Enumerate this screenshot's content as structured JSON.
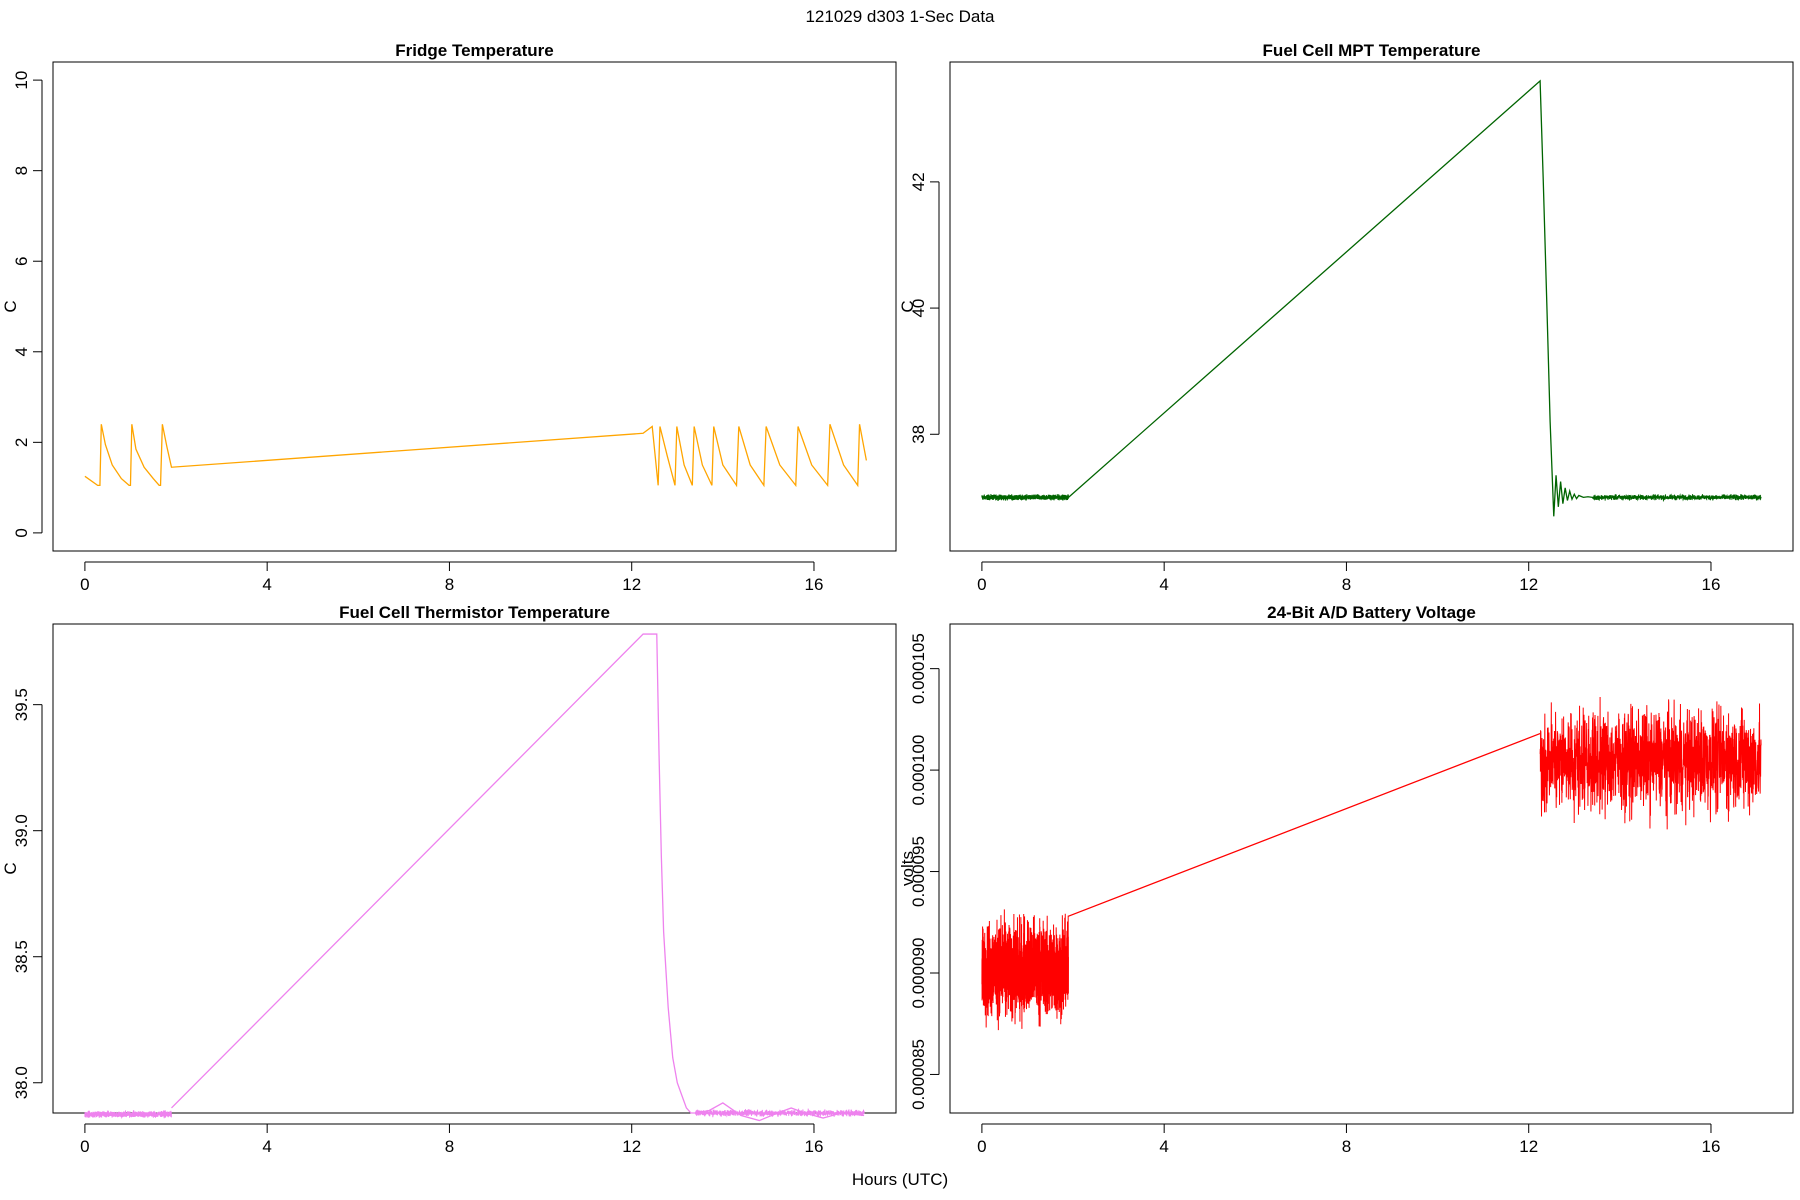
{
  "figure": {
    "suptitle": "121029   d303   1-Sec Data",
    "xlabel": "Hours (UTC)"
  },
  "chart_data": [
    {
      "type": "line",
      "title": "Fridge Temperature",
      "ylabel": "C",
      "color": "#FFA500",
      "xlim": [
        -0.7,
        17.8
      ],
      "ylim": [
        -0.4,
        10.4
      ],
      "x_ticks": [
        0,
        4,
        8,
        12,
        16
      ],
      "x_tick_labels": [
        "0",
        "4",
        "8",
        "12",
        "16"
      ],
      "y_ticks": [
        0,
        2,
        4,
        6,
        8,
        10
      ],
      "y_tick_labels": [
        "0",
        "2",
        "4",
        "6",
        "8",
        "10"
      ],
      "series": [
        {
          "name": "fridge",
          "x": [
            0.0,
            0.28,
            0.33,
            0.36,
            0.45,
            0.6,
            0.8,
            0.97,
            1.0,
            1.03,
            1.12,
            1.3,
            1.5,
            1.63,
            1.66,
            1.7,
            1.8,
            1.9,
            12.25,
            12.45,
            12.58,
            12.62,
            12.78,
            12.95,
            12.99,
            13.15,
            13.33,
            13.37,
            13.55,
            13.76,
            13.8,
            14.0,
            14.3,
            14.35,
            14.6,
            14.9,
            14.95,
            15.25,
            15.6,
            15.65,
            15.95,
            16.3,
            16.35,
            16.65,
            16.96,
            17.0,
            17.15
          ],
          "y": [
            1.25,
            1.05,
            1.05,
            2.4,
            1.95,
            1.5,
            1.2,
            1.05,
            1.05,
            2.4,
            1.85,
            1.45,
            1.2,
            1.05,
            1.05,
            2.4,
            1.9,
            1.45,
            2.2,
            2.35,
            1.05,
            2.35,
            1.7,
            1.05,
            2.35,
            1.5,
            1.05,
            2.35,
            1.5,
            1.05,
            2.35,
            1.5,
            1.05,
            2.35,
            1.5,
            1.05,
            2.35,
            1.5,
            1.05,
            2.35,
            1.5,
            1.05,
            2.4,
            1.5,
            1.05,
            2.4,
            1.6
          ]
        }
      ]
    },
    {
      "type": "line",
      "title": "Fuel Cell MPT Temperature",
      "ylabel": "C",
      "color": "#006400",
      "xlim": [
        -0.7,
        17.8
      ],
      "ylim": [
        36.15,
        43.9
      ],
      "x_ticks": [
        0,
        4,
        8,
        12,
        16
      ],
      "x_tick_labels": [
        "0",
        "4",
        "8",
        "12",
        "16"
      ],
      "y_ticks": [
        38,
        40,
        42
      ],
      "y_tick_labels": [
        "38",
        "40",
        "42"
      ],
      "noise_segments": [
        {
          "x_start": 0.0,
          "x_end": 1.9,
          "center": 37.0,
          "amplitude": 0.06
        },
        {
          "x_start": 13.4,
          "x_end": 17.1,
          "center": 37.0,
          "amplitude": 0.06
        }
      ],
      "series": [
        {
          "name": "mpt",
          "x": [
            1.9,
            12.25,
            12.32,
            12.4,
            12.47,
            12.55,
            12.6,
            12.65,
            12.7,
            12.75,
            12.8,
            12.85,
            12.9,
            12.95,
            13.0,
            13.05,
            13.1,
            13.2,
            13.3,
            13.4
          ],
          "y": [
            37.0,
            43.6,
            42.0,
            40.0,
            38.2,
            36.7,
            37.35,
            36.85,
            37.25,
            36.9,
            37.15,
            36.95,
            37.1,
            36.97,
            37.05,
            36.98,
            37.03,
            37.0,
            37.01,
            37.0
          ]
        }
      ]
    },
    {
      "type": "line",
      "title": "Fuel Cell Thermistor Temperature",
      "ylabel": "C",
      "color": "#EE82EE",
      "xlim": [
        -0.7,
        17.8
      ],
      "ylim": [
        37.88,
        39.82
      ],
      "x_ticks": [
        0,
        4,
        8,
        12,
        16
      ],
      "x_tick_labels": [
        "0",
        "4",
        "8",
        "12",
        "16"
      ],
      "y_ticks": [
        38.0,
        38.5,
        39.0,
        39.5
      ],
      "y_tick_labels": [
        "38.0",
        "38.5",
        "39.0",
        "39.5"
      ],
      "noise_segments": [
        {
          "x_start": 0.0,
          "x_end": 1.9,
          "center": 37.875,
          "amplitude": 0.018
        },
        {
          "x_start": 13.4,
          "x_end": 17.1,
          "center": 37.88,
          "amplitude": 0.018
        }
      ],
      "series": [
        {
          "name": "thermistor",
          "x": [
            1.9,
            12.25,
            12.55,
            12.6,
            12.65,
            12.7,
            12.75,
            12.8,
            12.85,
            12.9,
            13.0,
            13.1,
            13.2,
            13.3,
            13.4,
            13.7,
            14.0,
            14.4,
            14.8,
            15.2,
            15.5,
            15.8,
            16.2,
            16.6,
            17.1
          ],
          "y": [
            37.9,
            39.78,
            39.78,
            39.3,
            38.9,
            38.6,
            38.45,
            38.3,
            38.2,
            38.1,
            38.0,
            37.95,
            37.9,
            37.88,
            37.88,
            37.89,
            37.92,
            37.87,
            37.85,
            37.88,
            37.9,
            37.88,
            37.86,
            37.88,
            37.87
          ]
        }
      ]
    },
    {
      "type": "line",
      "title": "24-Bit A/D Battery Voltage",
      "ylabel": "volts",
      "color": "#FF0000",
      "xlim": [
        -0.7,
        17.8
      ],
      "ylim": [
        8.31e-05,
        0.0001072
      ],
      "x_ticks": [
        0,
        4,
        8,
        12,
        16
      ],
      "x_tick_labels": [
        "0",
        "4",
        "8",
        "12",
        "16"
      ],
      "y_ticks": [
        8.5e-05,
        9e-05,
        9.5e-05,
        0.0001,
        0.000105
      ],
      "y_tick_labels": [
        "0.000085",
        "0.000090",
        "0.000095",
        "0.000100",
        "0.000105"
      ],
      "noise_segments": [
        {
          "x_start": 0.0,
          "x_end": 1.9,
          "center": 9.02e-05,
          "amplitude": 3.3e-06
        },
        {
          "x_start": 12.25,
          "x_end": 17.1,
          "center": 0.0001005,
          "amplitude": 3.6e-06
        }
      ],
      "series": [
        {
          "name": "battery",
          "x": [
            1.9,
            12.25
          ],
          "y": [
            9.28e-05,
            0.0001018
          ]
        }
      ]
    }
  ]
}
